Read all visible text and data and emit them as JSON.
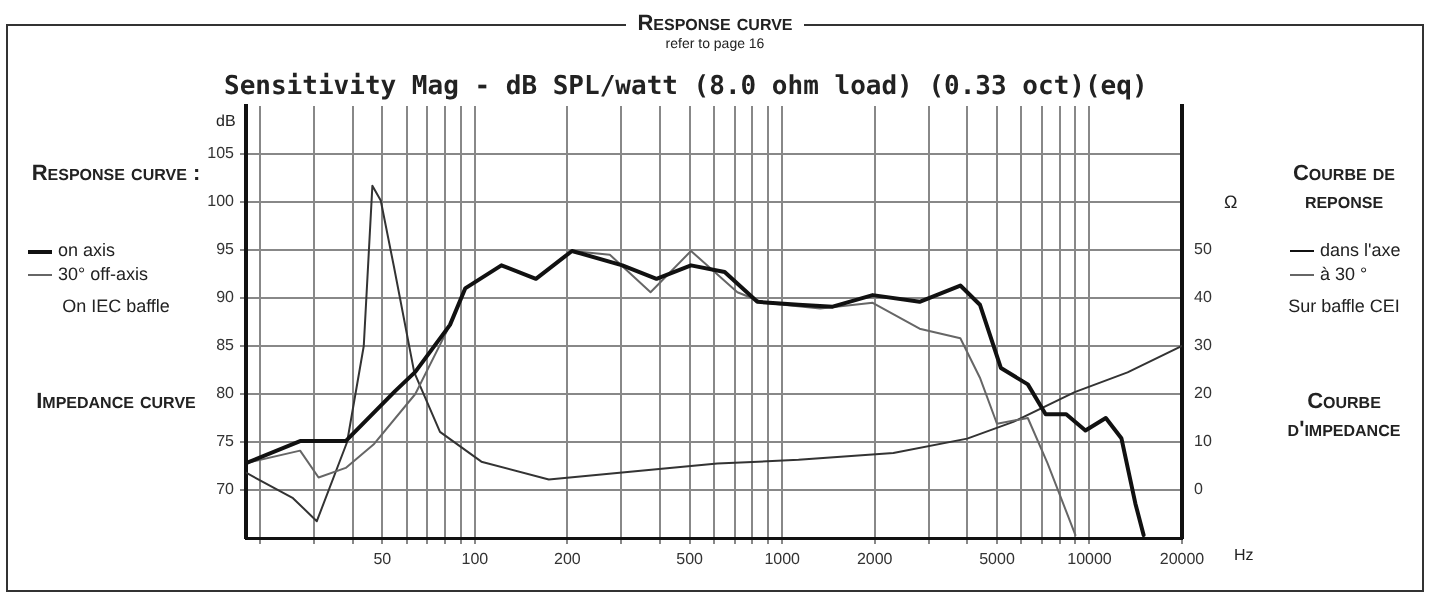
{
  "chart_data": {
    "type": "line",
    "title": "Response curve",
    "subtitle": "refer to page 16",
    "annotations": [
      "Sensitivity Mag - dB SPL/watt (8.0 ohm load) (0.33 oct)(eq)",
      "Response curve :",
      "On IEC baffle",
      "Impedance curve",
      "Courbe de reponse",
      "dans l'axe",
      "à 30 °",
      "Sur baffle CEI",
      "Courbe d'impedance"
    ],
    "xlabel": "Hz",
    "ylabel": "dB",
    "y2label": "Ω",
    "log": "x",
    "grid": true,
    "legend": "left",
    "line_style": "solid",
    "marker": "none",
    "xlim": [
      18,
      20000
    ],
    "xticks": [
      {
        "value": 20,
        "label": null
      },
      {
        "value": 30,
        "label": null
      },
      {
        "value": 40,
        "label": null
      },
      50,
      {
        "value": 60,
        "label": null
      },
      {
        "value": 70,
        "label": null
      },
      {
        "value": 80,
        "label": null
      },
      {
        "value": 90,
        "label": null
      },
      100,
      200,
      {
        "value": 300,
        "label": null
      },
      {
        "value": 400,
        "label": null
      },
      500,
      {
        "value": 600,
        "label": null
      },
      {
        "value": 700,
        "label": null
      },
      {
        "value": 800,
        "label": null
      },
      {
        "value": 900,
        "label": null
      },
      1000,
      2000,
      {
        "value": 3000,
        "label": null
      },
      {
        "value": 4000,
        "label": null
      },
      5000,
      {
        "value": 6000,
        "label": null
      },
      {
        "value": 7000,
        "label": null
      },
      {
        "value": 8000,
        "label": null
      },
      {
        "value": 9000,
        "label": null
      },
      10000,
      20000
    ],
    "ylim": [
      65,
      110
    ],
    "yticks": [
      70,
      75,
      80,
      85,
      90,
      95,
      100,
      105
    ],
    "y2lim": [
      -10,
      80
    ],
    "y2ticks": [
      0,
      10,
      20,
      30,
      40,
      50
    ],
    "series": [
      {
        "name": "on axis",
        "color": "#111111",
        "x": [
          18,
          27,
          38,
          55,
          64,
          83,
          93,
          122,
          158,
          207,
          302,
          390,
          505,
          650,
          830,
          1130,
          1460,
          1970,
          2800,
          3800,
          4400,
          5150,
          6300,
          7200,
          8400,
          9700,
          11300,
          12700,
          14100,
          15000
        ],
        "values": [
          72.8,
          75.1,
          75.1,
          80.3,
          82.3,
          87.2,
          91.0,
          93.4,
          92.0,
          94.9,
          93.4,
          92.0,
          93.4,
          92.7,
          89.6,
          89.3,
          89.1,
          90.3,
          89.6,
          91.3,
          89.3,
          82.7,
          81.0,
          77.9,
          77.9,
          76.2,
          77.5,
          75.4,
          68.6,
          65.3
        ]
      },
      {
        "name": "30° off-axis",
        "color": "#666666",
        "x": [
          18,
          27,
          31,
          38,
          47,
          64,
          83,
          93,
          122,
          158,
          207,
          275,
          373,
          505,
          715,
          870,
          1330,
          1970,
          2800,
          3800,
          4400,
          5000,
          6300,
          7300,
          9000
        ],
        "values": [
          72.8,
          74.1,
          71.3,
          72.3,
          74.8,
          80.0,
          87.2,
          91.0,
          93.4,
          92.0,
          94.9,
          94.5,
          90.6,
          94.9,
          90.6,
          89.5,
          88.9,
          89.5,
          86.8,
          85.8,
          81.7,
          76.9,
          77.5,
          72.8,
          65.3
        ]
      },
      {
        "axis": "y2",
        "color": "#333333",
        "x": [
          18,
          25.6,
          30.6,
          38.4,
          43.5,
          46.4,
          49.4,
          54.5,
          63.5,
          77,
          105,
          174,
          320,
          615,
          1130,
          2300,
          4000,
          5650,
          8950,
          13300,
          20000
        ],
        "values": [
          3.6,
          -1.7,
          -6.5,
          10.0,
          30.0,
          63.4,
          60.3,
          46.6,
          24.5,
          12.1,
          5.9,
          2.2,
          3.8,
          5.5,
          6.3,
          7.7,
          10.7,
          14.2,
          20.4,
          24.5,
          30.0
        ]
      }
    ]
  }
}
